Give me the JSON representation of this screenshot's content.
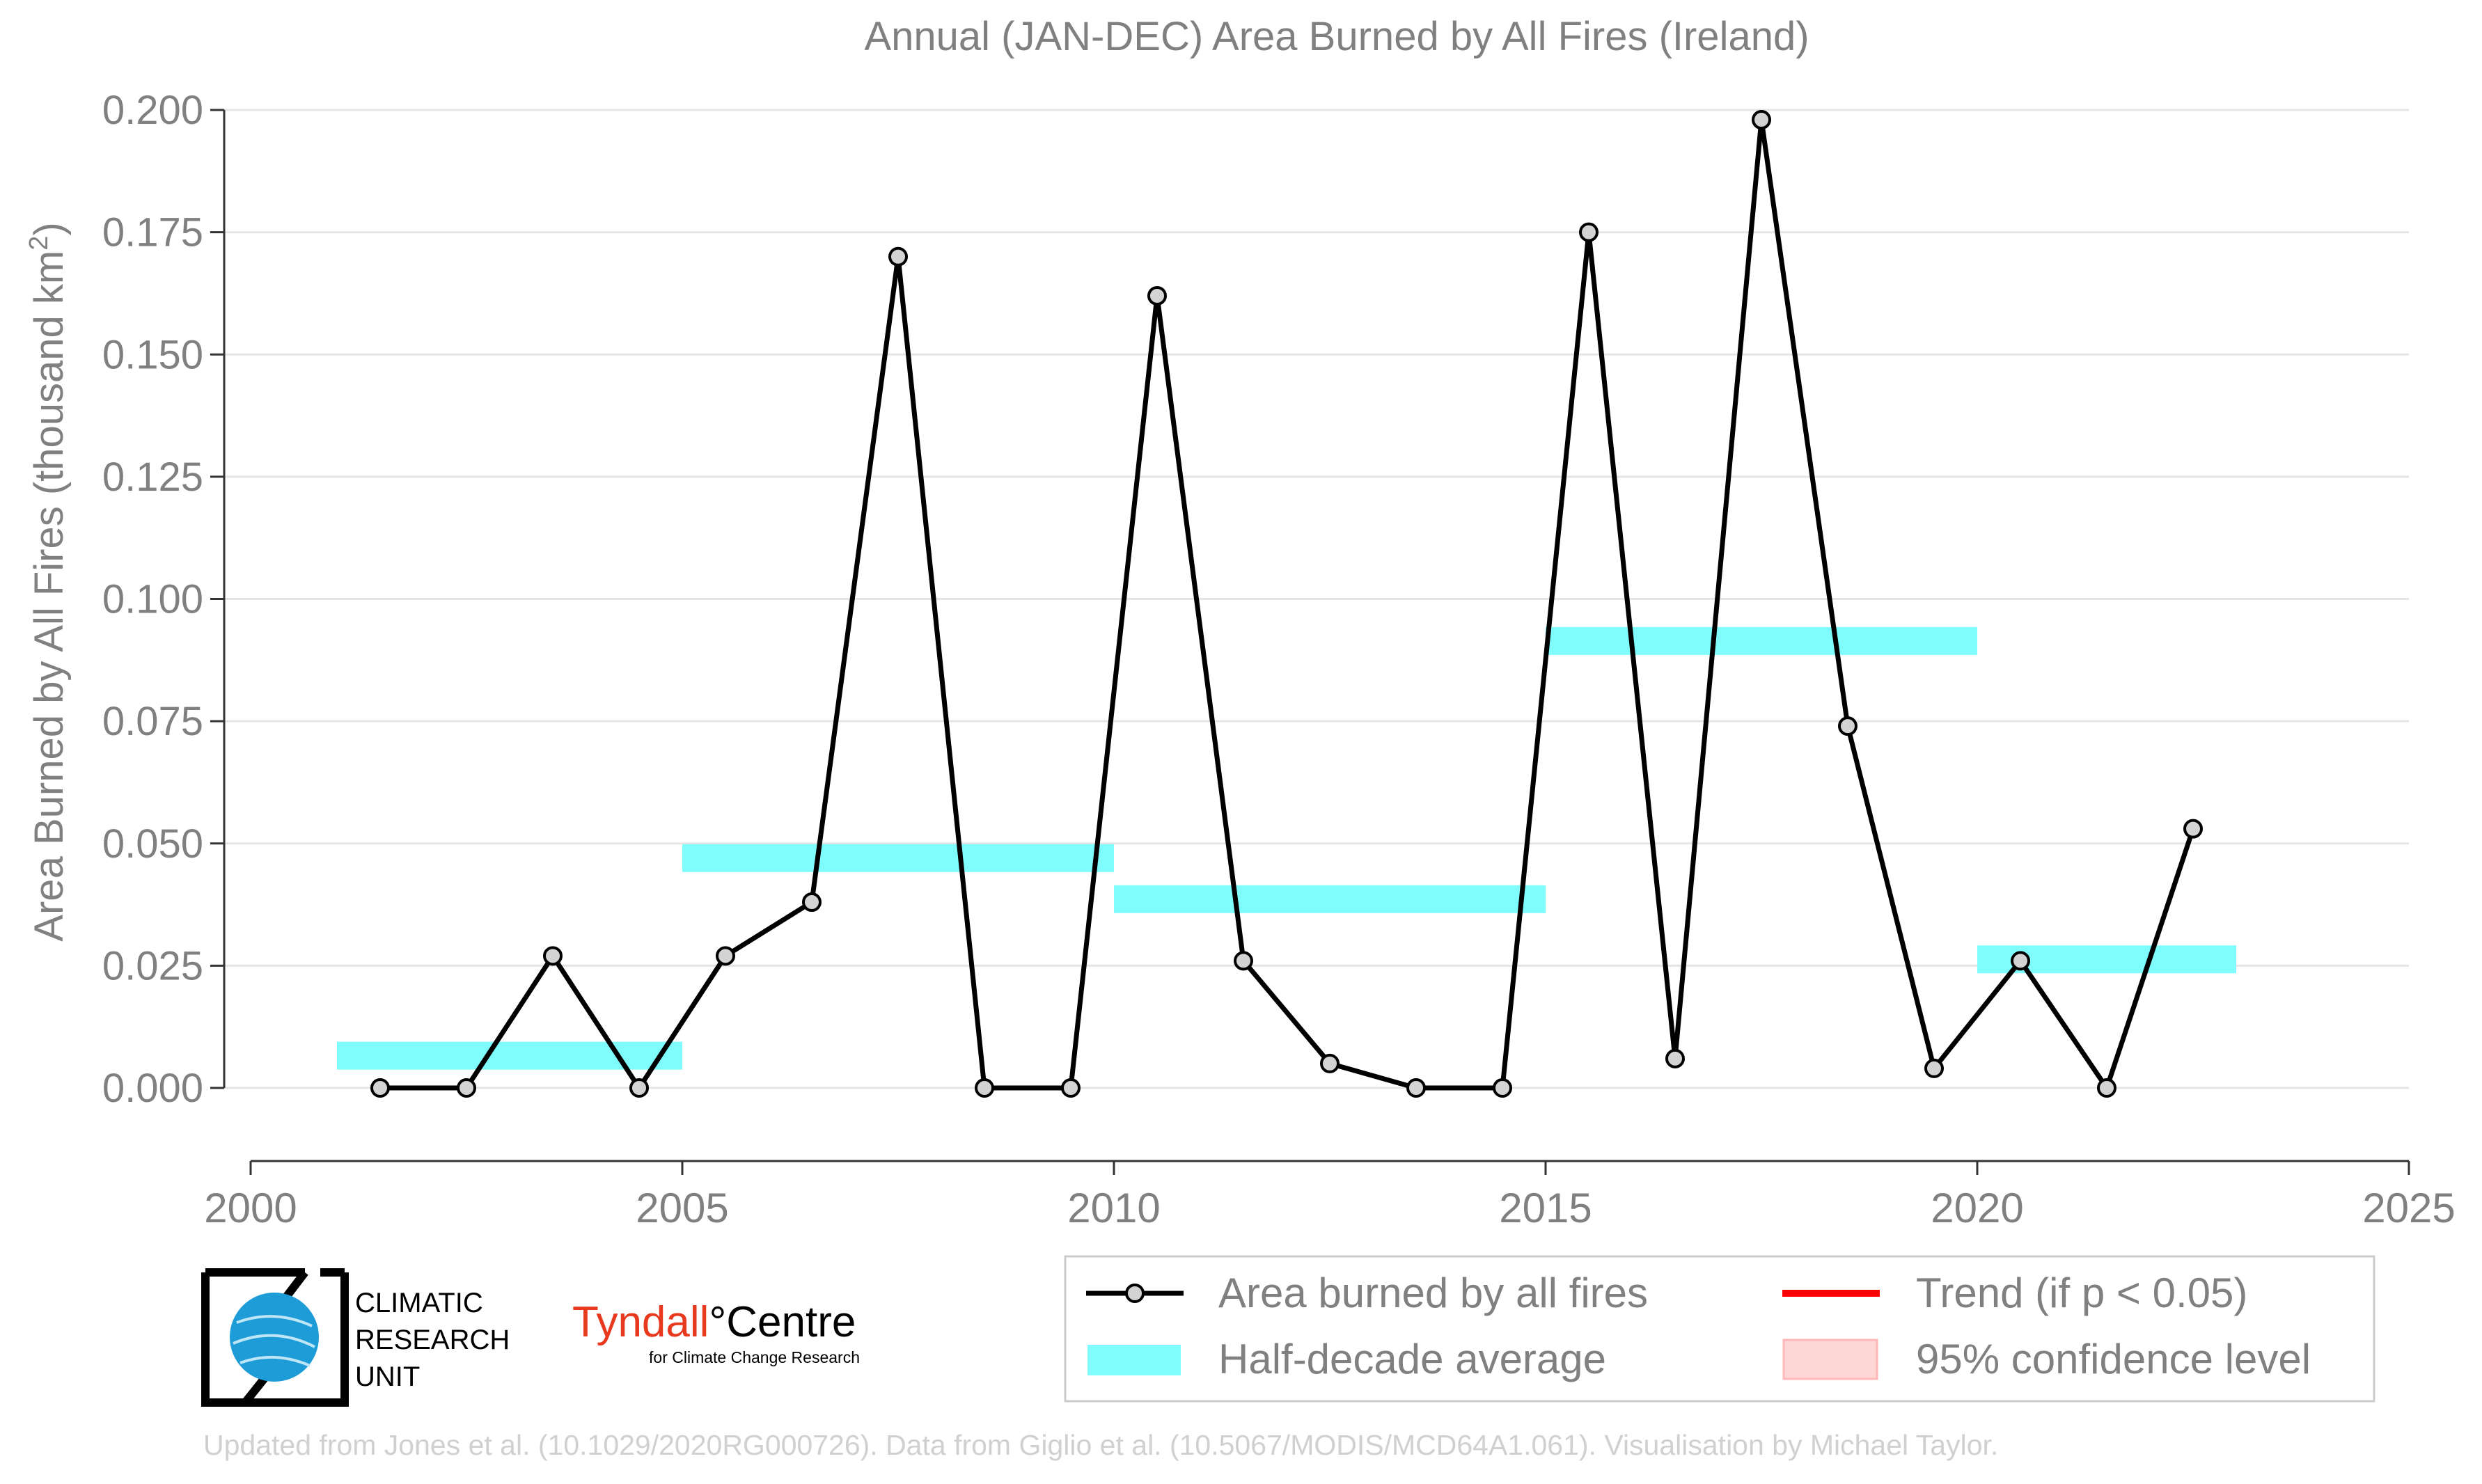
{
  "title": "Annual (JAN-DEC) Area Burned by All Fires (Ireland)",
  "footer": "Updated from Jones et al. (10.1029/2020RG000726). Data from Giglio et al. (10.5067/MODIS/MCD64A1.061). Visualisation by Michael Taylor.",
  "logos": {
    "cru_lines": [
      "CLIMATIC",
      "RESEARCH",
      "UNIT"
    ],
    "tyndall_main": "Tyndall",
    "tyndall_degree": "°",
    "tyndall_centre": "Centre",
    "tyndall_sub": "for Climate Change Research"
  },
  "colors": {
    "line": "#000000",
    "marker_fill": "#d3d3d3",
    "half_decade": "#7ffcfc",
    "trend": "#ff0000",
    "confidence": "#ffd6d6",
    "axis_text": "#808080",
    "grid": "#e5e5e5",
    "tyndall_red": "#e8381e",
    "cru_blue": "#1e9cd7"
  },
  "chart_data": {
    "type": "line",
    "title": "Annual (JAN-DEC) Area Burned by All Fires (Ireland)",
    "xlabel": "",
    "ylabel": "Area Burned by All Fires (thousand km²)",
    "ylabel_base": "Area Burned by All Fires (thousand km",
    "ylabel_sup": "2",
    "ylabel_end": ")",
    "xlim": [
      2000,
      2025
    ],
    "ylim": [
      -0.015,
      0.2
    ],
    "x_ticks": [
      2000,
      2005,
      2010,
      2015,
      2020,
      2025
    ],
    "x_tick_labels": [
      "2000",
      "2005",
      "2010",
      "2015",
      "2020",
      "2025"
    ],
    "y_ticks": [
      0,
      0.025,
      0.05,
      0.075,
      0.1,
      0.125,
      0.15,
      0.175,
      0.2
    ],
    "y_tick_labels": [
      "0.000",
      "0.025",
      "0.050",
      "0.075",
      "0.100",
      "0.125",
      "0.150",
      "0.175",
      "0.200"
    ],
    "grid": true,
    "series": [
      {
        "name": "Area burned by all fires",
        "x": [
          2001.5,
          2002.5,
          2003.5,
          2004.5,
          2005.5,
          2006.5,
          2007.5,
          2008.5,
          2009.5,
          2010.5,
          2011.5,
          2012.5,
          2013.5,
          2014.5,
          2015.5,
          2016.5,
          2017.5,
          2018.5,
          2019.5,
          2020.5,
          2021.5,
          2022.5
        ],
        "values": [
          0.0,
          0.0,
          0.027,
          0.0,
          0.027,
          0.038,
          0.17,
          0.0,
          0.0,
          0.162,
          0.026,
          0.005,
          0.0,
          0.0,
          0.175,
          0.006,
          0.198,
          0.074,
          0.004,
          0.026,
          0.0,
          0.053
        ]
      }
    ],
    "half_decade_averages": [
      {
        "x_start": 2001,
        "x_end": 2005,
        "value": 0.0066
      },
      {
        "x_start": 2005,
        "x_end": 2010,
        "value": 0.047
      },
      {
        "x_start": 2010,
        "x_end": 2015,
        "value": 0.0386
      },
      {
        "x_start": 2015,
        "x_end": 2020,
        "value": 0.0914
      },
      {
        "x_start": 2020,
        "x_end": 2023,
        "value": 0.0263
      }
    ],
    "legend": {
      "placement": "bottom-right",
      "entries": [
        {
          "label": "Area burned by all fires",
          "kind": "line-marker"
        },
        {
          "label": "Trend (if p < 0.05)",
          "kind": "trend-line"
        },
        {
          "label": "Half-decade average",
          "kind": "half-decade-band"
        },
        {
          "label": "95% confidence level",
          "kind": "confidence-band"
        }
      ]
    }
  }
}
